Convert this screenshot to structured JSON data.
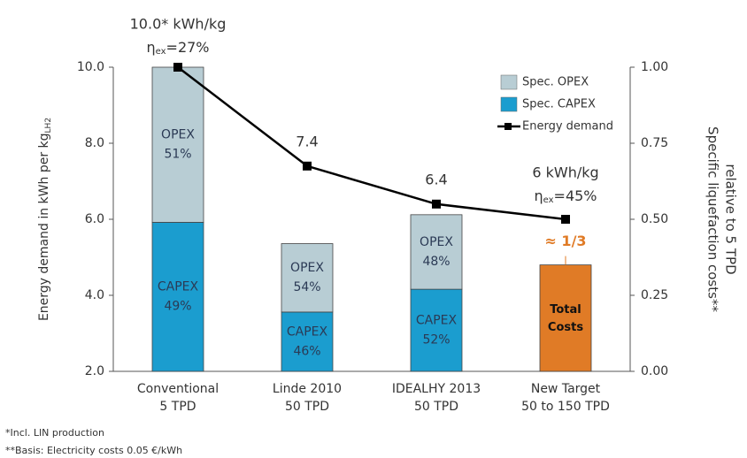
{
  "chart_data": {
    "type": "bar_line",
    "categories": [
      "Conventional",
      "Linde 2010",
      "IDEALHY 2013",
      "New Target"
    ],
    "category_sublabels": [
      "5 TPD",
      "50 TPD",
      "50 TPD",
      "50 to 150 TPD"
    ],
    "y_label": "Energy demand in kWh per kg",
    "y_label_sub": "LH2",
    "y2_label": [
      "Specific liquefaction costs**",
      "relative to 5 TPD"
    ],
    "ylim": [
      2,
      10
    ],
    "yticks": [
      {
        "value": 2,
        "label": "2.0"
      },
      {
        "value": 4,
        "label": "4.0"
      },
      {
        "value": 6,
        "label": "6.0"
      },
      {
        "value": 8,
        "label": "8.0"
      },
      {
        "value": 10,
        "label": "10.0"
      }
    ],
    "y2lim": [
      0,
      1
    ],
    "y2ticks": [
      {
        "value": 0,
        "label": "0.00"
      },
      {
        "value": 0.25,
        "label": "0.25"
      },
      {
        "value": 0.5,
        "label": "0.50"
      },
      {
        "value": 0.75,
        "label": "0.75"
      },
      {
        "value": 1,
        "label": "1.00"
      }
    ],
    "legend": "upper right",
    "series": [
      {
        "name": "Spec. CAPEX",
        "color": "#1b9dcf",
        "axis": "y2",
        "segment_text": "CAPEX",
        "shares": [
          "49%",
          "46%",
          "52%",
          null
        ],
        "values": [
          0.49,
          0.195,
          0.27,
          null
        ]
      },
      {
        "name": "Spec. OPEX",
        "color": "#b8cdd4",
        "axis": "y2",
        "segment_text": "OPEX",
        "shares": [
          "51%",
          "54%",
          "48%",
          null
        ],
        "values": [
          0.51,
          0.225,
          0.245,
          null
        ]
      },
      {
        "name": "Energy demand",
        "color": "#000000",
        "values": [
          10.0,
          7.4,
          6.4,
          6.0
        ],
        "value_labels": [
          "10.0* kWh/kg",
          "7.4",
          "6.4",
          "6 kWh/kg"
        ]
      }
    ],
    "eta_symbol": "η",
    "eta_sub": "ex",
    "eta_labels": [
      "=27%",
      null,
      null,
      "=45%"
    ],
    "target_bar": {
      "label": "Total Costs",
      "value": 0.35,
      "color": "#e07b26",
      "note": "≈ 1/3"
    },
    "footnotes": [
      "*Incl. LIN production",
      "**Basis: Electricity costs 0.05 €/kWh"
    ]
  }
}
